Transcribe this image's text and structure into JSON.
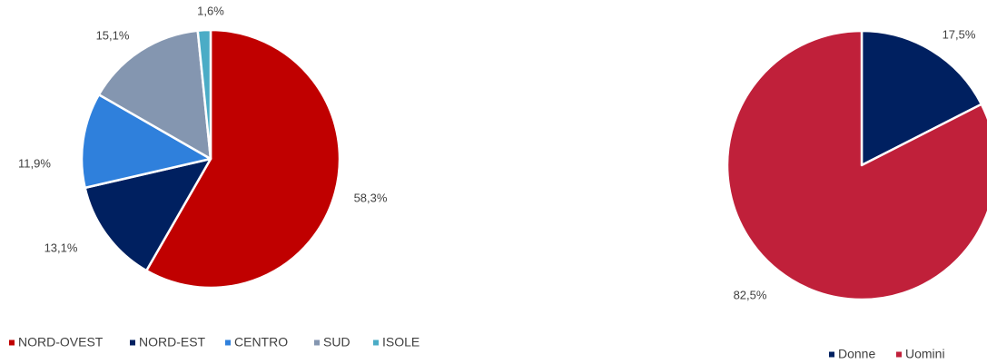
{
  "chart_data": [
    {
      "type": "pie",
      "title": "",
      "categories": [
        "NORD-OVEST",
        "NORD-EST",
        "CENTRO",
        "SUD",
        "ISOLE"
      ],
      "values": [
        58.3,
        13.1,
        11.9,
        15.1,
        1.6
      ],
      "data_labels": [
        "58,3%",
        "13,1%",
        "11,9%",
        "15,1%",
        "1,6%"
      ],
      "colors": [
        "#C00000",
        "#002060",
        "#2F80DC",
        "#8496B0",
        "#4BACC6"
      ],
      "start_angle_deg": 0,
      "direction": "clockwise",
      "legend_position": "bottom"
    },
    {
      "type": "pie",
      "title": "",
      "categories": [
        "Donne",
        "Uomini"
      ],
      "values": [
        17.5,
        82.5
      ],
      "data_labels": [
        "17,5%",
        "82,5%"
      ],
      "colors": [
        "#002060",
        "#C0203A"
      ],
      "start_angle_deg": 0,
      "direction": "clockwise",
      "legend_position": "bottom"
    }
  ]
}
